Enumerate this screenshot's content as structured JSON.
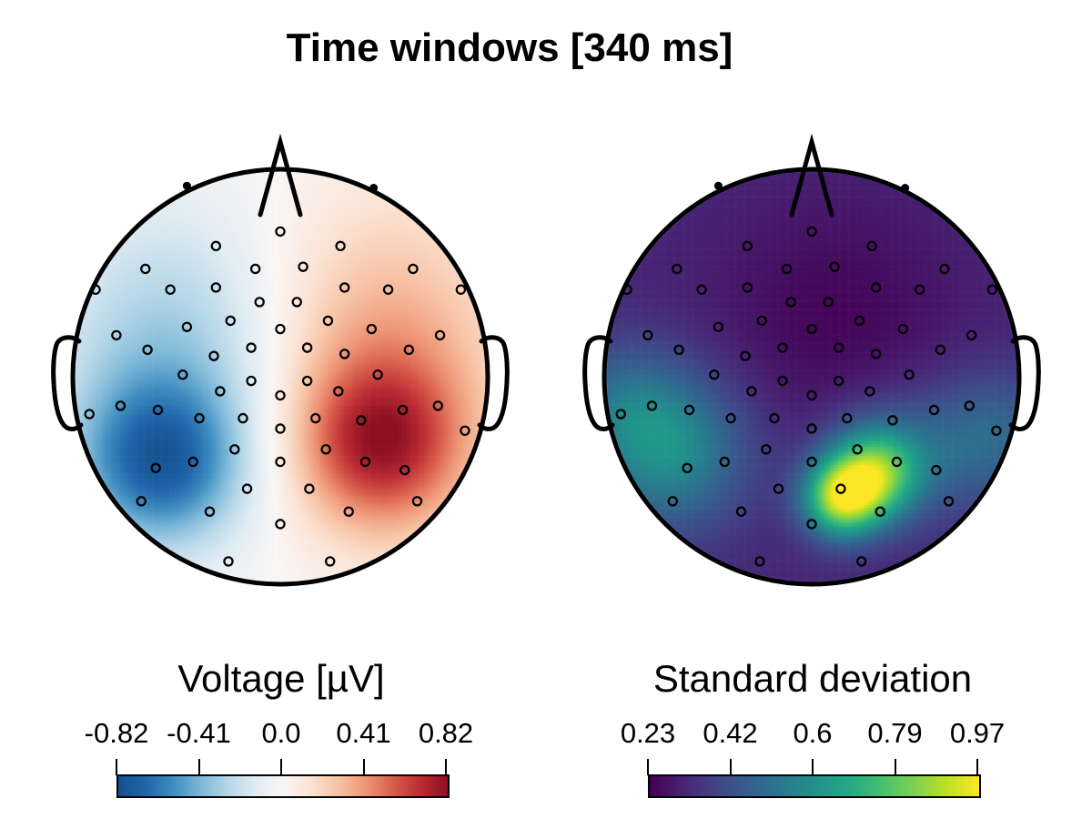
{
  "title": "Time windows [340 ms]",
  "chart_data": {
    "type": "heatmap",
    "subtype": "eeg_topoplot_pair",
    "description": "Two scalp topographies over a 340 ms time window: mean voltage (RdBu) and standard deviation (viridis), each with a horizontal colorbar below",
    "panels": [
      {
        "id": "mean",
        "colorbar_label": "Voltage [µV]",
        "tick_labels": [
          "-0.82",
          "-0.41",
          "0.0",
          "0.41",
          "0.82"
        ],
        "vmin": -0.82,
        "vmax": 0.82,
        "colormap": "rdbu_r",
        "base": 0.0,
        "field_blobs": [
          {
            "x": 0.5,
            "y": 0.05,
            "sx": 0.42,
            "sy": 0.55,
            "a": 0.38
          },
          {
            "x": 0.48,
            "y": -0.33,
            "sx": 0.27,
            "sy": 0.27,
            "a": 0.55
          },
          {
            "x": -0.52,
            "y": 0.05,
            "sx": 0.42,
            "sy": 0.55,
            "a": -0.35
          },
          {
            "x": -0.58,
            "y": -0.42,
            "sx": 0.27,
            "sy": 0.27,
            "a": -0.56
          }
        ]
      },
      {
        "id": "std",
        "colorbar_label": "Standard deviation",
        "tick_labels": [
          "0.23",
          "0.42",
          "0.6",
          "0.79",
          "0.97"
        ],
        "vmin": 0.23,
        "vmax": 0.97,
        "colormap": "viridis",
        "base": 0.31,
        "field_blobs": [
          {
            "x": 0.14,
            "y": -0.59,
            "sx": 0.13,
            "sy": 0.13,
            "a": 0.5
          },
          {
            "x": 0.3,
            "y": -0.47,
            "sx": 0.15,
            "sy": 0.15,
            "a": 0.42
          },
          {
            "x": 0.42,
            "y": -0.38,
            "sx": 0.25,
            "sy": 0.22,
            "a": 0.15
          },
          {
            "x": -0.68,
            "y": -0.36,
            "sx": 0.26,
            "sy": 0.26,
            "a": 0.27
          },
          {
            "x": -0.92,
            "y": -0.12,
            "sx": 0.22,
            "sy": 0.22,
            "a": 0.13
          },
          {
            "x": 0.88,
            "y": -0.28,
            "sx": 0.22,
            "sy": 0.22,
            "a": 0.16
          },
          {
            "x": 0.12,
            "y": 0.28,
            "sx": 0.42,
            "sy": 0.42,
            "a": -0.07
          }
        ]
      }
    ],
    "electrode_positions": [
      [
        -0.45,
        0.92
      ],
      [
        0.45,
        0.91
      ],
      [
        0.0,
        0.7
      ],
      [
        -0.31,
        0.63
      ],
      [
        0.29,
        0.63
      ],
      [
        -0.65,
        0.52
      ],
      [
        -0.12,
        0.52
      ],
      [
        0.11,
        0.53
      ],
      [
        0.64,
        0.52
      ],
      [
        -0.89,
        0.42
      ],
      [
        -0.53,
        0.42
      ],
      [
        -0.31,
        0.43
      ],
      [
        0.31,
        0.43
      ],
      [
        0.52,
        0.42
      ],
      [
        0.87,
        0.42
      ],
      [
        -0.1,
        0.36
      ],
      [
        0.08,
        0.36
      ],
      [
        -0.24,
        0.27
      ],
      [
        0.23,
        0.27
      ],
      [
        -0.79,
        0.2
      ],
      [
        -0.45,
        0.24
      ],
      [
        0.0,
        0.23
      ],
      [
        0.44,
        0.23
      ],
      [
        0.77,
        0.2
      ],
      [
        -0.64,
        0.13
      ],
      [
        -0.32,
        0.1
      ],
      [
        -0.14,
        0.14
      ],
      [
        0.13,
        0.14
      ],
      [
        0.31,
        0.11
      ],
      [
        0.62,
        0.13
      ],
      [
        -0.47,
        0.01
      ],
      [
        0.47,
        0.01
      ],
      [
        -0.14,
        -0.02
      ],
      [
        0.13,
        -0.02
      ],
      [
        -0.29,
        -0.07
      ],
      [
        0.28,
        -0.07
      ],
      [
        0.0,
        -0.09
      ],
      [
        -0.92,
        -0.18
      ],
      [
        -0.77,
        -0.14
      ],
      [
        0.76,
        -0.14
      ],
      [
        0.89,
        -0.26
      ],
      [
        -0.59,
        -0.16
      ],
      [
        0.59,
        -0.16
      ],
      [
        -0.39,
        -0.2
      ],
      [
        -0.18,
        -0.2
      ],
      [
        0.17,
        -0.2
      ],
      [
        0.39,
        -0.21
      ],
      [
        0.0,
        -0.25
      ],
      [
        -0.22,
        -0.35
      ],
      [
        0.22,
        -0.35
      ],
      [
        -0.42,
        -0.41
      ],
      [
        0.0,
        -0.41
      ],
      [
        0.41,
        -0.41
      ],
      [
        -0.6,
        -0.44
      ],
      [
        0.6,
        -0.45
      ],
      [
        -0.16,
        -0.54
      ],
      [
        0.14,
        -0.54
      ],
      [
        -0.67,
        -0.6
      ],
      [
        0.66,
        -0.6
      ],
      [
        -0.34,
        -0.65
      ],
      [
        0.33,
        -0.65
      ],
      [
        0.0,
        -0.71
      ],
      [
        -0.25,
        -0.89
      ],
      [
        0.24,
        -0.89
      ]
    ],
    "colormaps": {
      "rdbu_r": [
        "#14508e",
        "#2166ac",
        "#3f8ec0",
        "#7db8d8",
        "#b6d7e8",
        "#e1ecf3",
        "#f9f6f4",
        "#fbe3d4",
        "#f7c3a5",
        "#ee9677",
        "#d95f4d",
        "#bc2c34",
        "#8e1023"
      ],
      "viridis": [
        "#440154",
        "#482475",
        "#414487",
        "#355f8d",
        "#2a788e",
        "#21918c",
        "#22a884",
        "#44bf70",
        "#7ad151",
        "#bddf26",
        "#fde725"
      ]
    },
    "style": {
      "head_outline_color": "#000000",
      "electrode_marker_color": "#000000",
      "background": "#ffffff"
    }
  }
}
